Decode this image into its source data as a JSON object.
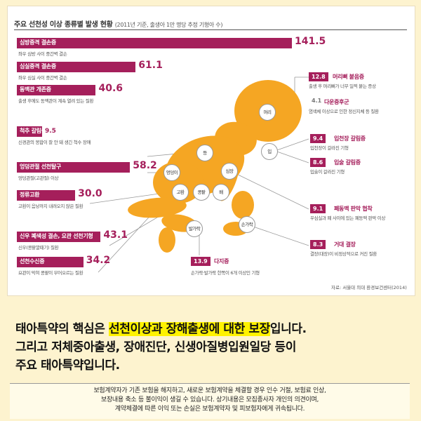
{
  "chart_data": {
    "type": "bar",
    "title": "주요 선천성 이상 종류별 발생 현황",
    "subtitle": "(2011년 기준, 출생아 1만 명당 추정 기형아 수)",
    "source": "자료: 서울대 의대 환경보건센터(2014)",
    "left_items": [
      {
        "label": "심방중격 결손증",
        "value": 141.5,
        "value_text": "141.5",
        "desc": "좌우 심방 사이 중간벽 결손"
      },
      {
        "label": "심실중격 결손증",
        "value": 61.1,
        "value_text": "61.1",
        "desc": "좌우 심실 사이 중간벽 결손"
      },
      {
        "label": "동맥관 개존증",
        "value": 40.6,
        "value_text": "40.6",
        "desc": "출생 후에도 동맥관이 계속 열려 있는 질환"
      },
      {
        "label": "척추 갈림증",
        "value": 9.5,
        "value_text": "9.5",
        "desc": "신경관의 봉합이 잘 안 돼 생긴 척수 장애"
      },
      {
        "label": "엉덩관절 선천탈구",
        "value": 58.2,
        "value_text": "58.2",
        "desc": "엉덩관절(고관절) 이상"
      },
      {
        "label": "정류고환",
        "value": 30.0,
        "value_text": "30.0",
        "desc": "고환이 음낭까지 내려오지 않은 질환"
      },
      {
        "label": "신우 폐색성 결손, 요관 선천기형",
        "value": 43.1,
        "value_text": "43.1",
        "desc": "신우(콩팥깔때기) 질환"
      },
      {
        "label": "선천수신증",
        "value": 34.2,
        "value_text": "34.2",
        "desc": "요관이 막혀 콩팥이 부어오르는 질환"
      }
    ],
    "right_items": [
      {
        "label": "머리뼈 붙음증",
        "value": 12.8,
        "value_text": "12.8",
        "desc": "출생 후 머리뼈가 너무 일찍 붙는 증상"
      },
      {
        "label": "다운증후군",
        "value": 4.1,
        "value_text": "4.1",
        "desc": "염색체 이상으로 인한 정신지체 등 질환"
      },
      {
        "label": "입천장 갈림증",
        "value": 9.4,
        "value_text": "9.4",
        "desc": "입천장이 갈라진 기형"
      },
      {
        "label": "입술 갈림증",
        "value": 8.6,
        "value_text": "8.6",
        "desc": "입술이 갈라진 기형"
      },
      {
        "label": "폐동맥 판막 협착",
        "value": 9.1,
        "value_text": "9.1",
        "desc": "우심실과 폐 사이에 있는 폐동맥 판막 이상"
      },
      {
        "label": "거대 결장",
        "value": 8.3,
        "value_text": "8.3",
        "desc": "결장(대장)이 비정상적으로 커진 질환"
      }
    ],
    "bottom_item": {
      "label": "다지증",
      "value": 13.9,
      "value_text": "13.9",
      "desc": "손가락·발가락 한쪽이 6개 이상인 기형"
    },
    "body_parts": [
      "머리",
      "입",
      "등",
      "엉덩이",
      "심장",
      "고환",
      "콩팥",
      "배",
      "손가락",
      "발가락"
    ],
    "colors": {
      "bar": "#a51f5b",
      "baby": "#f5a623",
      "highlight": "#fff200",
      "background": "#fdf3cf"
    }
  },
  "headline": {
    "l1_pre": "태아특약의 핵심은 ",
    "l1_hl": "선천이상과 장해출생에 대한 보장",
    "l1_post": "입니다.",
    "l2": "그리고 저체중아출생, 장애진단, 신생아질병입원일당 등이",
    "l3": "주요 태아특약입니다."
  },
  "footer": {
    "line1": "보험계약자가 기존 보험을 해지하고, 새로운 보험계약을 체결할 경우 인수 거절, 보험료 인상,",
    "line2": "보장내용 축소 등 불이익이 생길 수 있습니다. 상기내용은 모집종사자 개인의 의견이며,",
    "line3": "계약체결에 따른 이익 또는 손실은 보험계약자 및 피보험자에게 귀속됩니다."
  }
}
